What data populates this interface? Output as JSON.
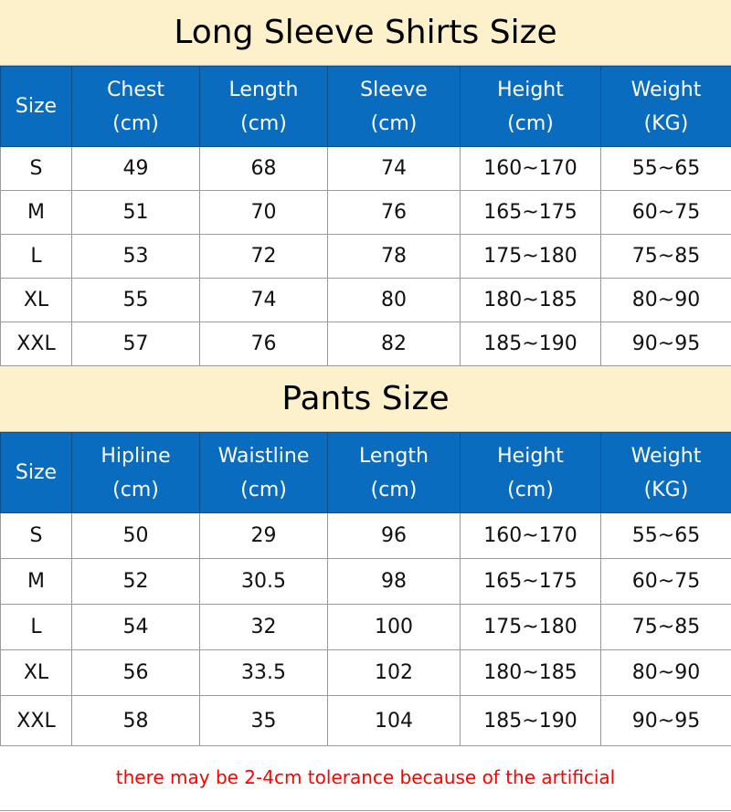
{
  "shirts": {
    "title": "Long Sleeve Shirts Size",
    "headers": [
      [
        "Size",
        ""
      ],
      [
        "Chest",
        "(cm)"
      ],
      [
        "Length",
        "(cm)"
      ],
      [
        "Sleeve",
        "(cm)"
      ],
      [
        "Height",
        "(cm)"
      ],
      [
        "Weight",
        "(KG)"
      ]
    ],
    "rows": [
      [
        "S",
        "49",
        "68",
        "74",
        "160~170",
        "55~65"
      ],
      [
        "M",
        "51",
        "70",
        "76",
        "165~175",
        "60~75"
      ],
      [
        "L",
        "53",
        "72",
        "78",
        "175~180",
        "75~85"
      ],
      [
        "XL",
        "55",
        "74",
        "80",
        "180~185",
        "80~90"
      ],
      [
        "XXL",
        "57",
        "76",
        "82",
        "185~190",
        "90~95"
      ]
    ]
  },
  "pants": {
    "title": "Pants Size",
    "headers": [
      [
        "Size",
        ""
      ],
      [
        "Hipline",
        "(cm)"
      ],
      [
        "Waistline",
        "(cm)"
      ],
      [
        "Length",
        "(cm)"
      ],
      [
        "Height",
        "(cm)"
      ],
      [
        "Weight",
        "(KG)"
      ]
    ],
    "rows": [
      [
        "S",
        "50",
        "29",
        "96",
        "160~170",
        "55~65"
      ],
      [
        "M",
        "52",
        "30.5",
        "98",
        "165~175",
        "60~75"
      ],
      [
        "L",
        "54",
        "32",
        "100",
        "175~180",
        "75~85"
      ],
      [
        "XL",
        "56",
        "33.5",
        "102",
        "180~185",
        "80~90"
      ],
      [
        "XXL",
        "58",
        "35",
        "104",
        "185~190",
        "90~95"
      ]
    ]
  },
  "footer_note": "there may be 2-4cm tolerance because of the artificial",
  "colors": {
    "header_bg": "#0a6cbf",
    "title_bg": "#fdf1cc",
    "note": "#ff0000"
  }
}
